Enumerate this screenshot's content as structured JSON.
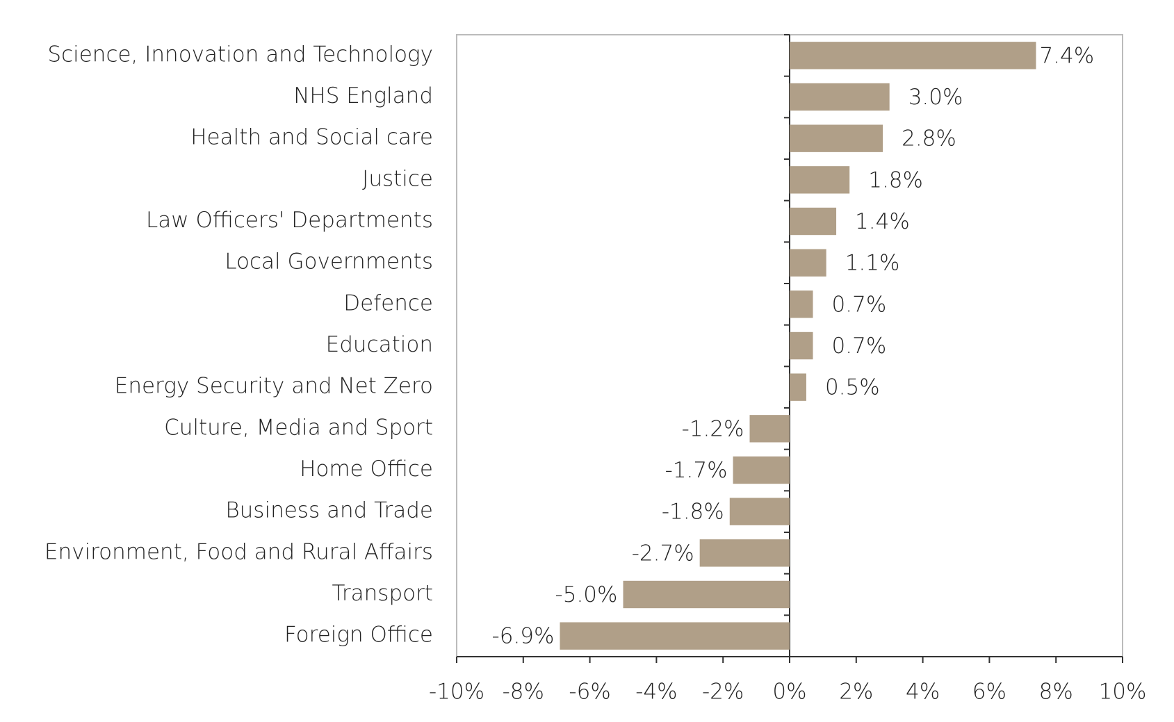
{
  "chart_data": {
    "type": "bar",
    "categories": [
      "Science, Innovation and Technology",
      "NHS England",
      "Health and Social care",
      "Justice",
      "Law Officers' Departments",
      "Local Governments",
      "Defence",
      "Education",
      "Energy Security and Net Zero",
      "Culture, Media and Sport",
      "Home Office",
      "Business and Trade",
      "Environment, Food and Rural Affairs",
      "Transport",
      "Foreign Office"
    ],
    "values": [
      7.4,
      3.0,
      2.8,
      1.8,
      1.4,
      1.1,
      0.7,
      0.7,
      0.5,
      -1.2,
      -1.7,
      -1.8,
      -2.7,
      -5.0,
      -6.9
    ],
    "value_labels": [
      "7.4%",
      "3.0%",
      "2.8%",
      "1.8%",
      "1.4%",
      "1.1%",
      "0.7%",
      "0.7%",
      "0.5%",
      "-1.2%",
      "-1.7%",
      "-1.8%",
      "-2.7%",
      "-5.0%",
      "-6.9%"
    ],
    "color": "#b09f88",
    "xlim": [
      -10,
      10
    ],
    "xticks": [
      {
        "value": -10,
        "label": "-10%"
      },
      {
        "value": -8,
        "label": "-8%"
      },
      {
        "value": -6,
        "label": "-6%"
      },
      {
        "value": -4,
        "label": "-4%"
      },
      {
        "value": -2,
        "label": "-2%"
      },
      {
        "value": 0,
        "label": "0%"
      },
      {
        "value": 2,
        "label": "2%"
      },
      {
        "value": 4,
        "label": "4%"
      },
      {
        "value": 6,
        "label": "6%"
      },
      {
        "value": 8,
        "label": "8%"
      },
      {
        "value": 10,
        "label": "10%"
      }
    ],
    "grid": false
  }
}
